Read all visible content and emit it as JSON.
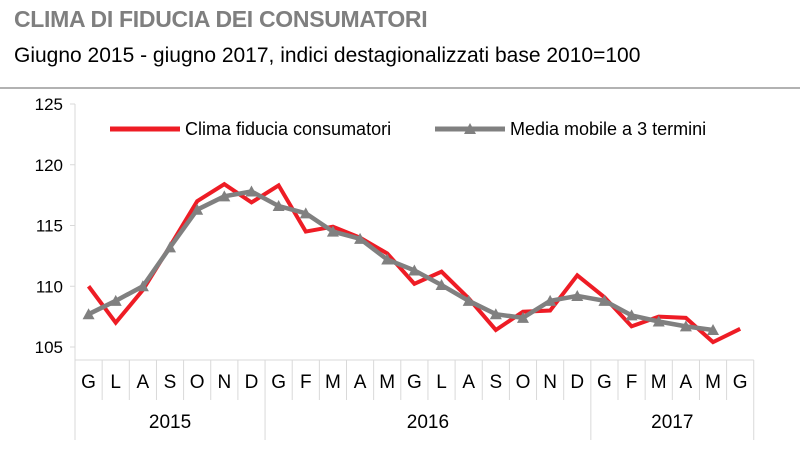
{
  "chart_data": {
    "type": "line",
    "title": "CLIMA DI FIDUCIA DEI CONSUMATORI",
    "subtitle": "Giugno  2015 - giugno  2017, indici destagionalizzati base 2010=100",
    "categories": [
      "G",
      "L",
      "A",
      "S",
      "O",
      "N",
      "D",
      "G",
      "F",
      "M",
      "A",
      "M",
      "G",
      "L",
      "A",
      "S",
      "O",
      "N",
      "D",
      "G",
      "F",
      "M",
      "A",
      "M",
      "G"
    ],
    "years": [
      {
        "label": "2015",
        "span": 7
      },
      {
        "label": "2016",
        "span": 12
      },
      {
        "label": "2017",
        "span": 6
      }
    ],
    "ylim": [
      105,
      125
    ],
    "yticks": [
      "105",
      "110",
      "115",
      "120",
      "125"
    ],
    "legend_position": "top",
    "series": [
      {
        "name": "Clima fiducia consumatori",
        "color": "#ee1c25",
        "marker": "none",
        "values": [
          110.0,
          107.0,
          109.7,
          113.3,
          117.0,
          118.4,
          116.9,
          118.3,
          114.5,
          114.9,
          114.0,
          112.7,
          110.2,
          111.2,
          109.0,
          106.4,
          107.9,
          108.0,
          110.9,
          109.1,
          106.7,
          107.5,
          107.4,
          105.4,
          106.5
        ]
      },
      {
        "name": "Media mobile a 3 termini",
        "color": "#808080",
        "marker": "triangle",
        "values": [
          107.7,
          108.8,
          110.0,
          113.2,
          116.3,
          117.4,
          117.8,
          116.6,
          116.0,
          114.5,
          113.9,
          112.2,
          111.3,
          110.1,
          108.8,
          107.7,
          107.4,
          108.8,
          109.2,
          108.8,
          107.6,
          107.1,
          106.7,
          106.4,
          null
        ]
      }
    ]
  }
}
